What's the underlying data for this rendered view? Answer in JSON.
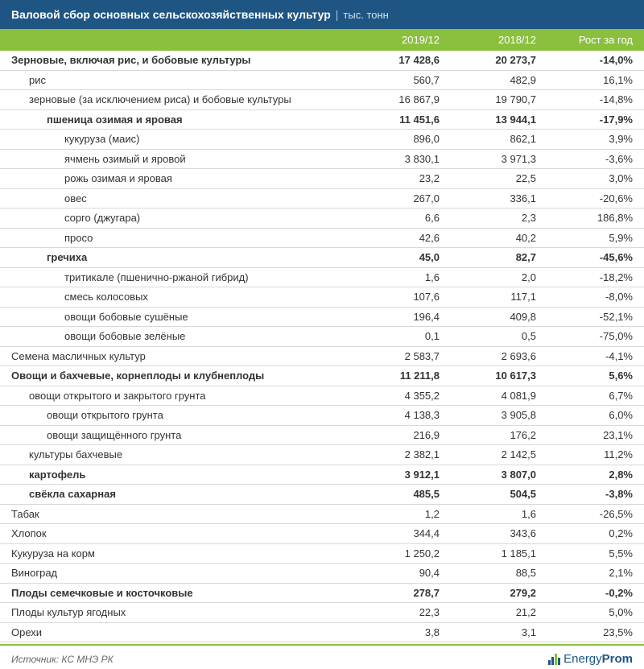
{
  "title": {
    "main": "Валовой сбор основных сельскохозяйственных культур",
    "separator": "|",
    "unit": "тыс. тонн"
  },
  "columns": {
    "c1": "2019/12",
    "c2": "2018/12",
    "c3": "Рост за год"
  },
  "rows": [
    {
      "name": "Зерновые, включая рис, и бобовые культуры",
      "a": "17 428,6",
      "b": "20 273,7",
      "c": "-14,0%",
      "bold": true,
      "indent": 0
    },
    {
      "name": "рис",
      "a": "560,7",
      "b": "482,9",
      "c": "16,1%",
      "bold": false,
      "indent": 1
    },
    {
      "name": "зерновые (за исключением риса) и бобовые культуры",
      "a": "16 867,9",
      "b": "19 790,7",
      "c": "-14,8%",
      "bold": false,
      "indent": 1
    },
    {
      "name": "пшеница озимая и яровая",
      "a": "11 451,6",
      "b": "13 944,1",
      "c": "-17,9%",
      "bold": true,
      "indent": 2
    },
    {
      "name": "кукуруза (маис)",
      "a": "896,0",
      "b": "862,1",
      "c": "3,9%",
      "bold": false,
      "indent": 3
    },
    {
      "name": "ячмень озимый и яровой",
      "a": "3 830,1",
      "b": "3 971,3",
      "c": "-3,6%",
      "bold": false,
      "indent": 3
    },
    {
      "name": "рожь озимая и яровая",
      "a": "23,2",
      "b": "22,5",
      "c": "3,0%",
      "bold": false,
      "indent": 3
    },
    {
      "name": "овес",
      "a": "267,0",
      "b": "336,1",
      "c": "-20,6%",
      "bold": false,
      "indent": 3
    },
    {
      "name": "сорго (джугара)",
      "a": "6,6",
      "b": "2,3",
      "c": "186,8%",
      "bold": false,
      "indent": 3
    },
    {
      "name": "просо",
      "a": "42,6",
      "b": "40,2",
      "c": "5,9%",
      "bold": false,
      "indent": 3
    },
    {
      "name": "гречиха",
      "a": "45,0",
      "b": "82,7",
      "c": "-45,6%",
      "bold": true,
      "indent": 2
    },
    {
      "name": "тритикале (пшенично-ржаной гибрид)",
      "a": "1,6",
      "b": "2,0",
      "c": "-18,2%",
      "bold": false,
      "indent": 3
    },
    {
      "name": "смесь колосовых",
      "a": "107,6",
      "b": "117,1",
      "c": "-8,0%",
      "bold": false,
      "indent": 3
    },
    {
      "name": "овощи бобовые сушёные",
      "a": "196,4",
      "b": "409,8",
      "c": "-52,1%",
      "bold": false,
      "indent": 3
    },
    {
      "name": "овощи бобовые зелёные",
      "a": "0,1",
      "b": "0,5",
      "c": "-75,0%",
      "bold": false,
      "indent": 3
    },
    {
      "name": "Семена масличных культур",
      "a": "2 583,7",
      "b": "2 693,6",
      "c": "-4,1%",
      "bold": false,
      "indent": 0
    },
    {
      "name": "Овощи и бахчевые, корнеплоды и клубнеплоды",
      "a": "11 211,8",
      "b": "10 617,3",
      "c": "5,6%",
      "bold": true,
      "indent": 0
    },
    {
      "name": "овощи открытого и закрытого грунта",
      "a": "4 355,2",
      "b": "4 081,9",
      "c": "6,7%",
      "bold": false,
      "indent": 1
    },
    {
      "name": "овощи открытого грунта",
      "a": "4 138,3",
      "b": "3 905,8",
      "c": "6,0%",
      "bold": false,
      "indent": 2
    },
    {
      "name": "овощи защищённого грунта",
      "a": "216,9",
      "b": "176,2",
      "c": "23,1%",
      "bold": false,
      "indent": 2
    },
    {
      "name": "культуры бахчевые",
      "a": "2 382,1",
      "b": "2 142,5",
      "c": "11,2%",
      "bold": false,
      "indent": 1
    },
    {
      "name": "картофель",
      "a": "3 912,1",
      "b": "3 807,0",
      "c": "2,8%",
      "bold": true,
      "indent": 1
    },
    {
      "name": "свёкла сахарная",
      "a": "485,5",
      "b": "504,5",
      "c": "-3,8%",
      "bold": true,
      "indent": 1
    },
    {
      "name": "Табак",
      "a": "1,2",
      "b": "1,6",
      "c": "-26,5%",
      "bold": false,
      "indent": 0
    },
    {
      "name": "Хлопок",
      "a": "344,4",
      "b": "343,6",
      "c": "0,2%",
      "bold": false,
      "indent": 0
    },
    {
      "name": "Кукуруза на корм",
      "a": "1 250,2",
      "b": "1 185,1",
      "c": "5,5%",
      "bold": false,
      "indent": 0
    },
    {
      "name": "Виноград",
      "a": "90,4",
      "b": "88,5",
      "c": "2,1%",
      "bold": false,
      "indent": 0
    },
    {
      "name": "Плоды семечковые и косточковые",
      "a": "278,7",
      "b": "279,2",
      "c": "-0,2%",
      "bold": true,
      "indent": 0
    },
    {
      "name": "Плоды культур ягодных",
      "a": "22,3",
      "b": "21,2",
      "c": "5,0%",
      "bold": false,
      "indent": 0
    },
    {
      "name": "Орехи",
      "a": "3,8",
      "b": "3,1",
      "c": "23,5%",
      "bold": false,
      "indent": 0
    }
  ],
  "footer": {
    "source": "Источник: КС МНЭ РК",
    "logo_part1": "Energy",
    "logo_part2": "Prom"
  },
  "colors": {
    "header_bg": "#1f5582",
    "subheader_bg": "#8bbf3e",
    "text": "#333333",
    "border": "#d9d9d9"
  }
}
